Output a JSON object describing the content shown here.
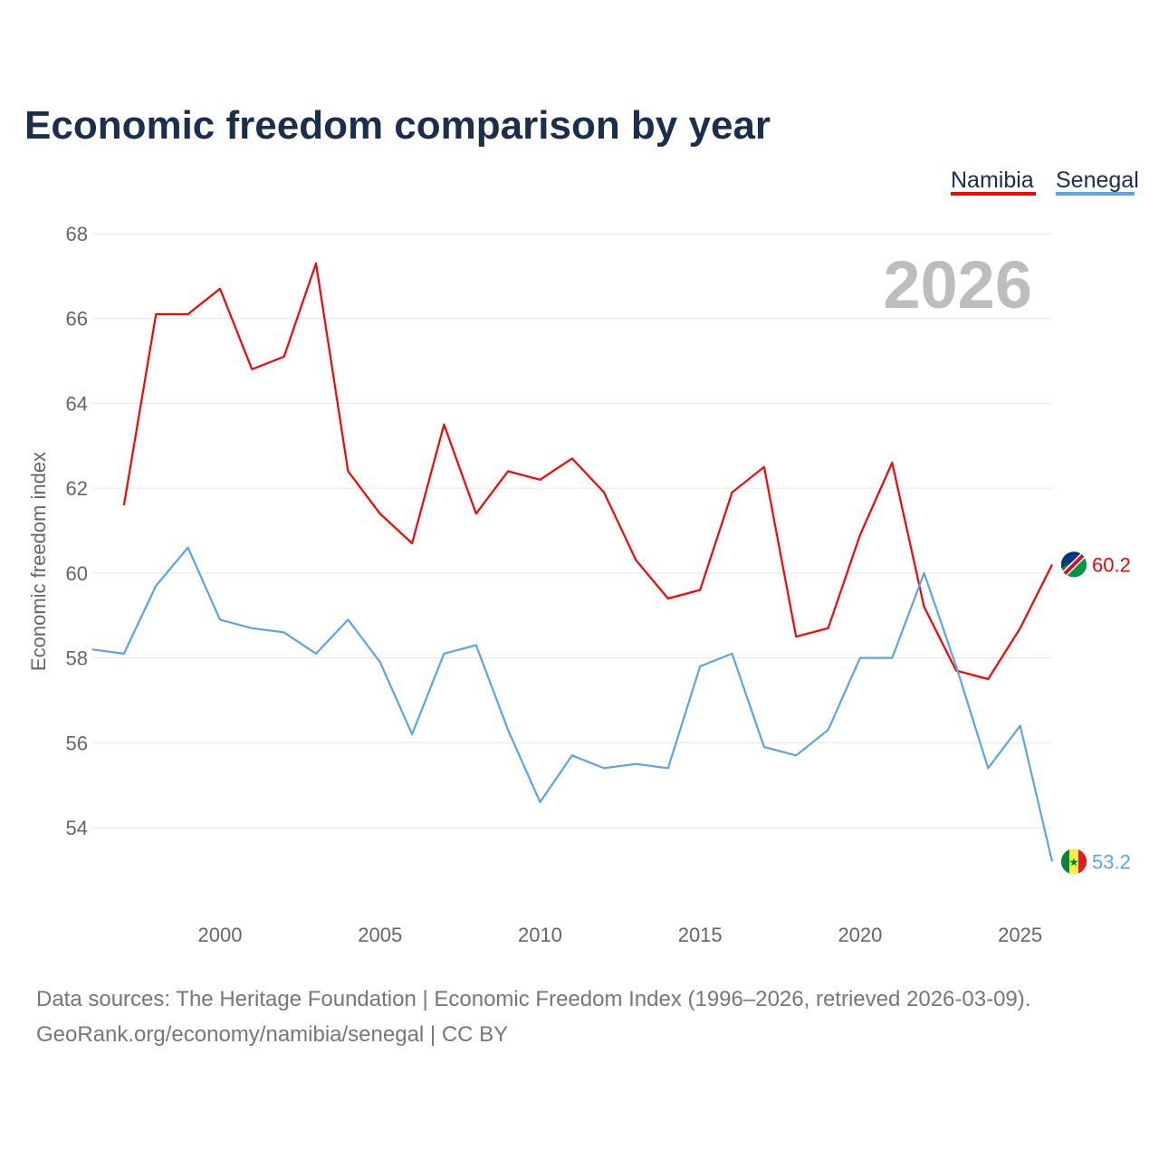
{
  "chart_data": {
    "type": "line",
    "title": "Economic freedom comparison by year",
    "xlabel": "",
    "ylabel": "Economic freedom index",
    "xlim": [
      1996,
      2026
    ],
    "ylim": [
      52,
      68
    ],
    "yticks": [
      54,
      56,
      58,
      60,
      62,
      64,
      66,
      68
    ],
    "xticks": [
      2000,
      2005,
      2010,
      2015,
      2020,
      2025
    ],
    "grid": true,
    "legend_placement": "top-right",
    "watermark_year": "2026",
    "series": [
      {
        "name": "Namibia",
        "color": "#ff0000",
        "end_label": "60.2",
        "x": [
          1997,
          1998,
          1999,
          2000,
          2001,
          2002,
          2003,
          2004,
          2005,
          2006,
          2007,
          2008,
          2009,
          2010,
          2011,
          2012,
          2013,
          2014,
          2015,
          2016,
          2017,
          2018,
          2019,
          2020,
          2021,
          2022,
          2023,
          2024,
          2025,
          2026
        ],
        "values": [
          61.6,
          66.1,
          66.1,
          66.7,
          64.8,
          65.1,
          67.3,
          62.4,
          61.4,
          60.7,
          63.5,
          61.4,
          62.4,
          62.2,
          62.7,
          61.9,
          60.3,
          59.4,
          59.6,
          61.9,
          62.5,
          58.5,
          58.7,
          60.9,
          62.6,
          59.2,
          57.7,
          57.5,
          58.7,
          60.2
        ]
      },
      {
        "name": "Senegal",
        "color": "#5ba4e8",
        "end_label": "53.2",
        "x": [
          1996,
          1997,
          1998,
          1999,
          2000,
          2001,
          2002,
          2003,
          2004,
          2005,
          2006,
          2007,
          2008,
          2009,
          2010,
          2011,
          2012,
          2013,
          2014,
          2015,
          2016,
          2017,
          2018,
          2019,
          2020,
          2021,
          2022,
          2023,
          2024,
          2025,
          2026
        ],
        "values": [
          58.2,
          58.1,
          59.7,
          60.6,
          58.9,
          58.7,
          58.6,
          58.1,
          58.9,
          57.9,
          56.2,
          58.1,
          58.3,
          56.3,
          54.6,
          55.7,
          55.4,
          55.5,
          55.4,
          57.8,
          58.1,
          55.9,
          55.7,
          56.3,
          58.0,
          58.0,
          60.0,
          57.8,
          55.4,
          56.4,
          53.2
        ]
      }
    ]
  },
  "source_line1": "Data sources: The Heritage Foundation | Economic Freedom Index (1996–2026, retrieved 2026-03-09).",
  "source_line2": "GeoRank.org/economy/namibia/senegal | CC BY"
}
